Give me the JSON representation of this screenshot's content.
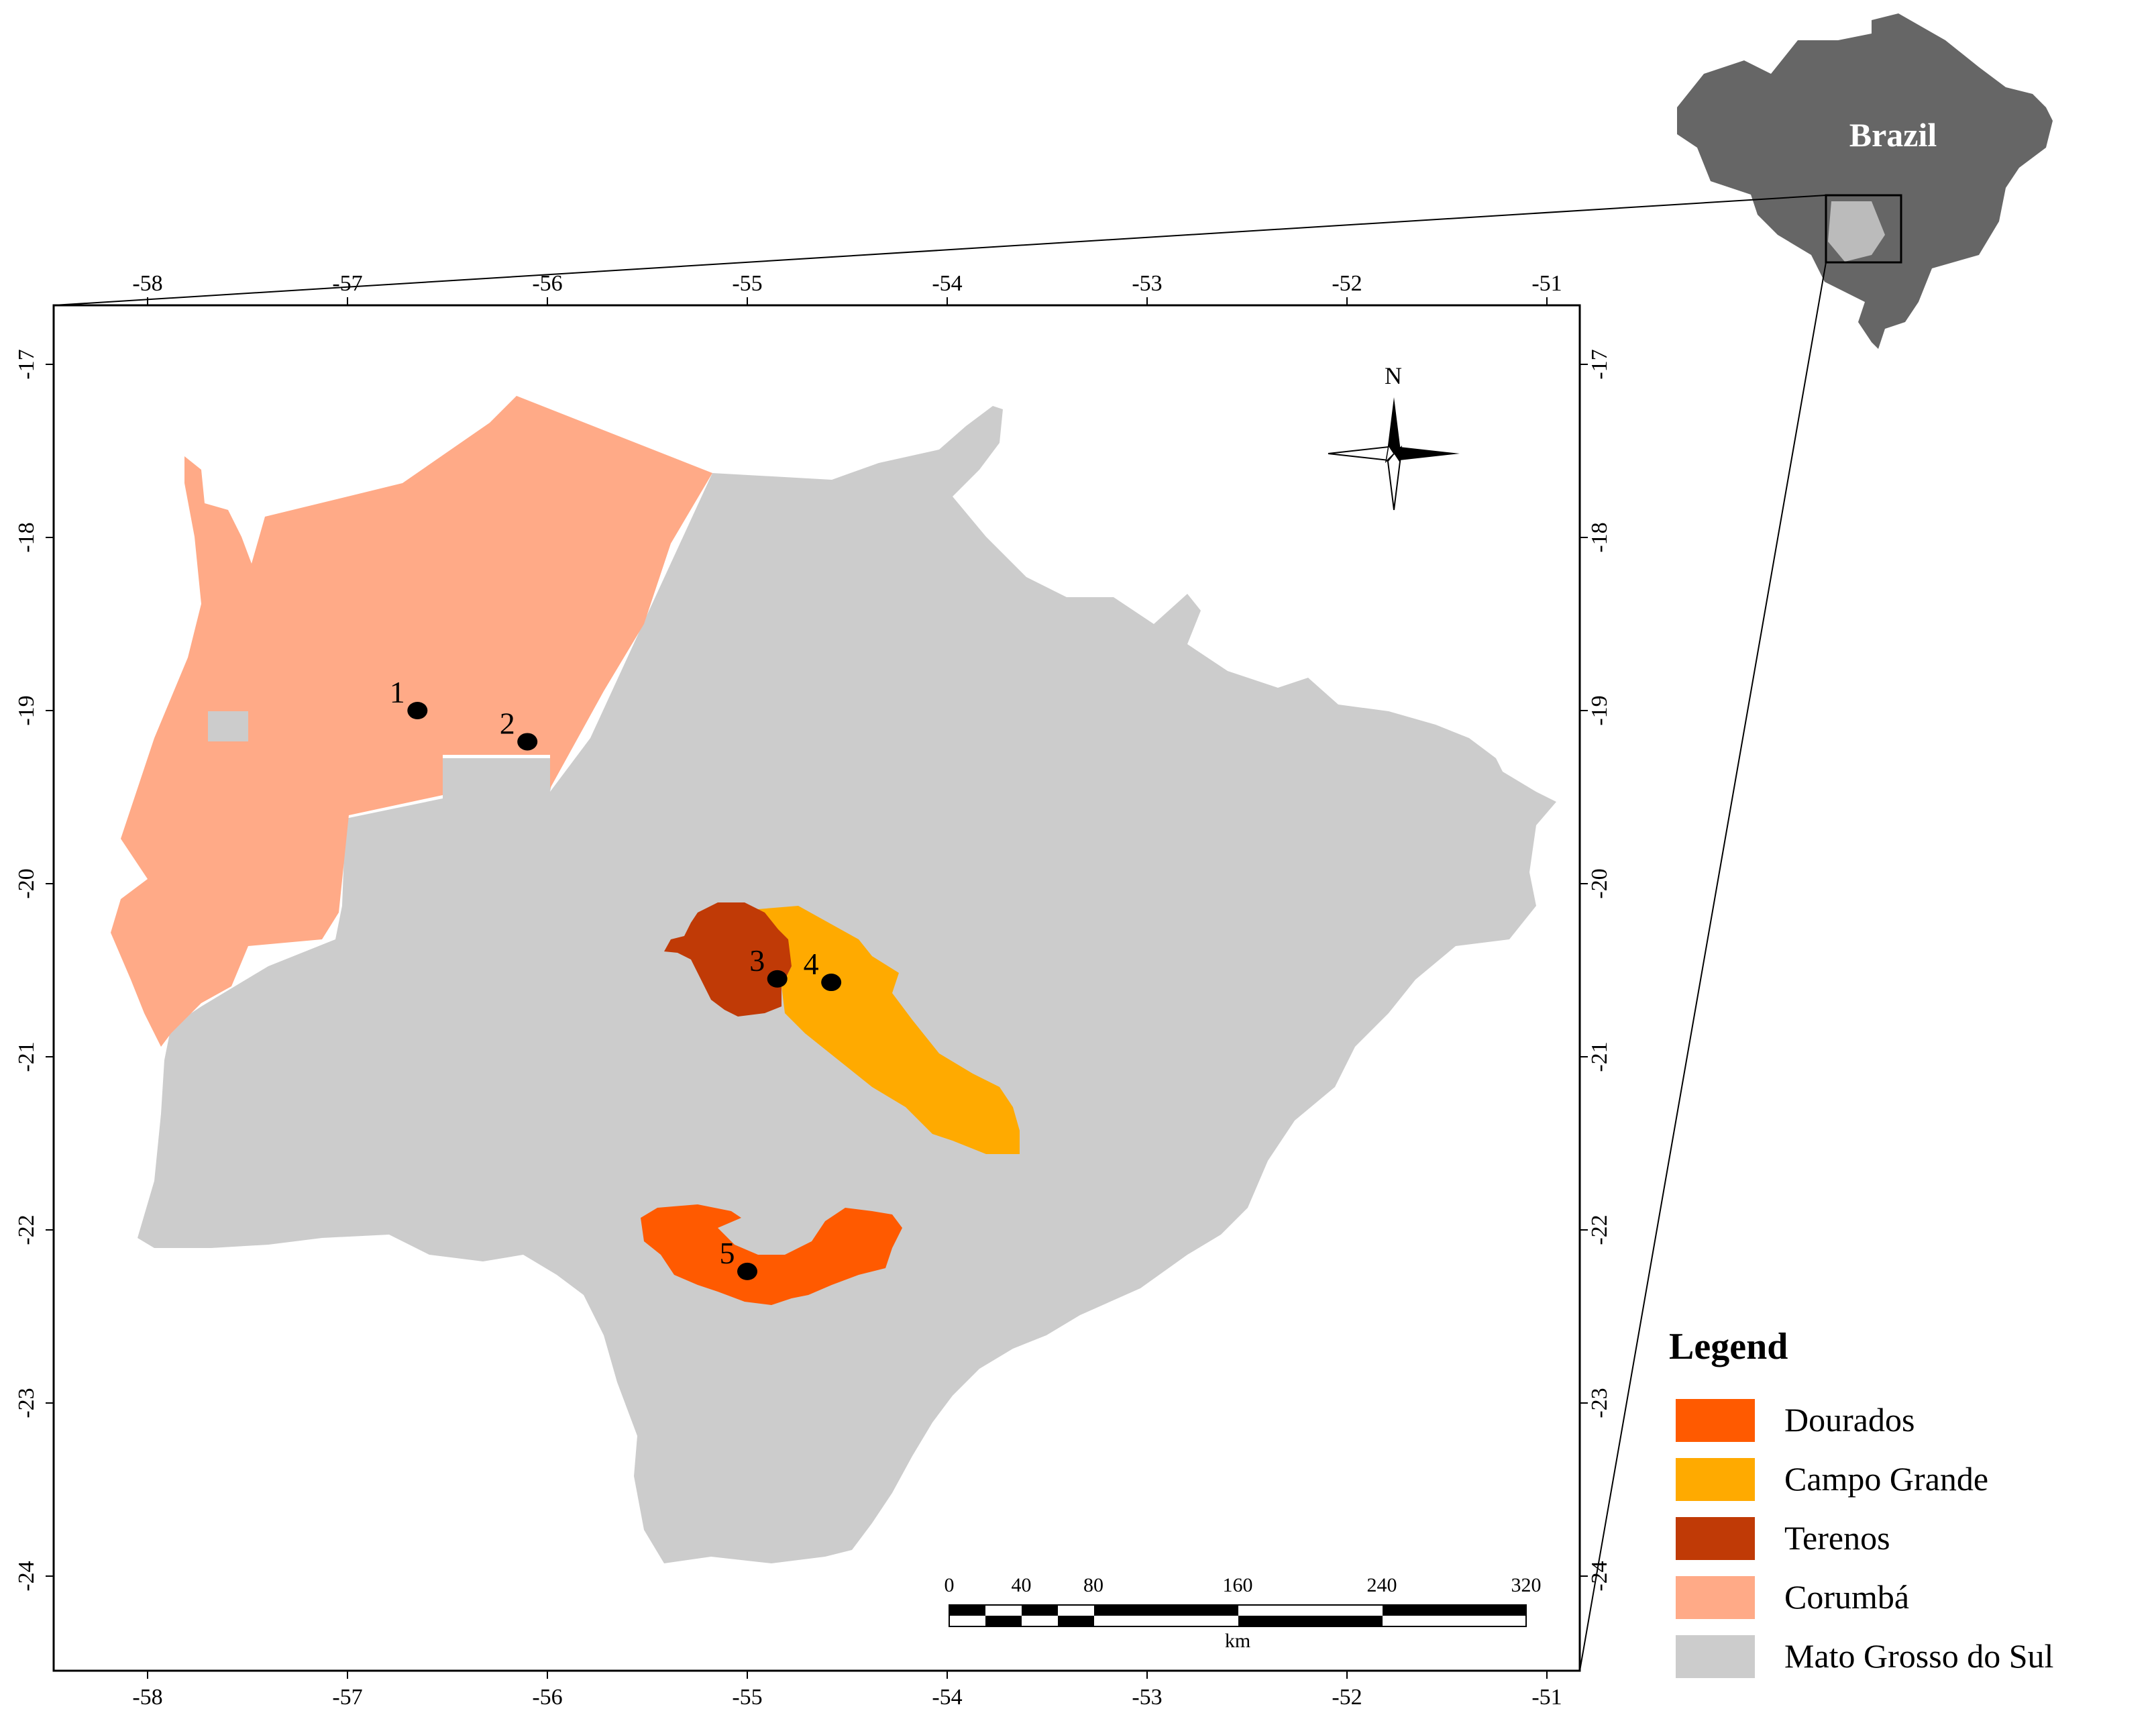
{
  "map": {
    "inset_label": "Brazil",
    "north_label": "N",
    "longitude_ticks": [
      "-58",
      "-57",
      "-56",
      "-55",
      "-54",
      "-53",
      "-52",
      "-51"
    ],
    "latitude_ticks": [
      "-17",
      "-18",
      "-19",
      "-20",
      "-21",
      "-22",
      "-23",
      "-24"
    ],
    "scale_ticks": [
      "0",
      "40",
      "80",
      "160",
      "240",
      "320"
    ],
    "scale_unit": "km",
    "sites": [
      {
        "label": "1",
        "lon": -56.65,
        "lat": -19.0
      },
      {
        "label": "2",
        "lon": -56.1,
        "lat": -19.18
      },
      {
        "label": "3",
        "lon": -54.85,
        "lat": -20.55
      },
      {
        "label": "4",
        "lon": -54.58,
        "lat": -20.57
      },
      {
        "label": "5",
        "lon": -55.0,
        "lat": -22.24
      }
    ]
  },
  "legend": {
    "title": "Legend",
    "items": [
      {
        "label": "Dourados",
        "color": "#ff5a00"
      },
      {
        "label": "Campo Grande",
        "color": "#ffaa00"
      },
      {
        "label": "Terenos",
        "color": "#c03a06"
      },
      {
        "label": "Corumbá",
        "color": "#ffaa87"
      },
      {
        "label": "Mato Grosso do Sul",
        "color": "#cccccc"
      }
    ]
  }
}
